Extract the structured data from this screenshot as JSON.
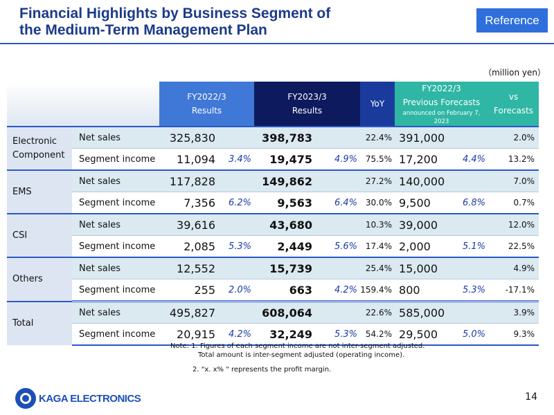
{
  "title": {
    "line1": "Financial Highlights by Business Segment of",
    "line2": "the Medium-Term Management Plan"
  },
  "badge": "Reference",
  "unit": "（million yen）",
  "headers": {
    "fy2022": {
      "line1": "FY2022/3",
      "line2": "Results"
    },
    "fy2023": {
      "line1": "FY2023/3",
      "line2": "Results"
    },
    "yoy": "YoY",
    "prev": {
      "line1": "FY2022/3",
      "line2": "Previous Forecasts",
      "line3": "announced on February 7, 2023"
    },
    "vs": {
      "line1": "vs",
      "line2": "Forecasts"
    }
  },
  "segments": [
    {
      "name": "Electronic Component",
      "rows": [
        {
          "item": "Net sales",
          "fy2022": "325,830",
          "fy2022_pct": "",
          "fy2023": "398,783",
          "fy2023_pct": "",
          "yoy": "22.4%",
          "prev": "391,000",
          "prev_pct": "",
          "vs": "2.0%"
        },
        {
          "item": "Segment income",
          "fy2022": "11,094",
          "fy2022_pct": "3.4%",
          "fy2023": "19,475",
          "fy2023_pct": "4.9%",
          "yoy": "75.5%",
          "prev": "17,200",
          "prev_pct": "4.4%",
          "vs": "13.2%"
        }
      ]
    },
    {
      "name": "EMS",
      "rows": [
        {
          "item": "Net sales",
          "fy2022": "117,828",
          "fy2022_pct": "",
          "fy2023": "149,862",
          "fy2023_pct": "",
          "yoy": "27.2%",
          "prev": "140,000",
          "prev_pct": "",
          "vs": "7.0%"
        },
        {
          "item": "Segment income",
          "fy2022": "7,356",
          "fy2022_pct": "6.2%",
          "fy2023": "9,563",
          "fy2023_pct": "6.4%",
          "yoy": "30.0%",
          "prev": "9,500",
          "prev_pct": "6.8%",
          "vs": "0.7%"
        }
      ]
    },
    {
      "name": "CSI",
      "rows": [
        {
          "item": "Net sales",
          "fy2022": "39,616",
          "fy2022_pct": "",
          "fy2023": "43,680",
          "fy2023_pct": "",
          "yoy": "10.3%",
          "prev": "39,000",
          "prev_pct": "",
          "vs": "12.0%"
        },
        {
          "item": "Segment income",
          "fy2022": "2,085",
          "fy2022_pct": "5.3%",
          "fy2023": "2,449",
          "fy2023_pct": "5.6%",
          "yoy": "17.4%",
          "prev": "2,000",
          "prev_pct": "5.1%",
          "vs": "22.5%"
        }
      ]
    },
    {
      "name": "Others",
      "rows": [
        {
          "item": "Net sales",
          "fy2022": "12,552",
          "fy2022_pct": "",
          "fy2023": "15,739",
          "fy2023_pct": "",
          "yoy": "25.4%",
          "prev": "15,000",
          "prev_pct": "",
          "vs": "4.9%"
        },
        {
          "item": "Segment income",
          "fy2022": "255",
          "fy2022_pct": "2.0%",
          "fy2023": "663",
          "fy2023_pct": "4.2%",
          "yoy": "159.4%",
          "prev": "800",
          "prev_pct": "5.3%",
          "vs": "-17.1%"
        }
      ]
    },
    {
      "name": "Total",
      "rows": [
        {
          "item": "Net sales",
          "fy2022": "495,827",
          "fy2022_pct": "",
          "fy2023": "608,064",
          "fy2023_pct": "",
          "yoy": "22.6%",
          "prev": "585,000",
          "prev_pct": "",
          "vs": "3.9%"
        },
        {
          "item": "Segment income",
          "fy2022": "20,915",
          "fy2022_pct": "4.2%",
          "fy2023": "32,249",
          "fy2023_pct": "5.3%",
          "yoy": "54.2%",
          "prev": "29,500",
          "prev_pct": "5.0%",
          "vs": "9.3%"
        }
      ]
    }
  ],
  "notes": {
    "line1": "Note: 1. Figures of each segment income are not inter-segment adjusted.",
    "line2": "Total amount is inter-segment adjusted (operating income).",
    "line3": "2. \"x. x% \" represents the profit margin."
  },
  "logo_text": "KAGA ELECTRONICS",
  "page_number": "14",
  "colors": {
    "title": "#1b3a8a",
    "badge": "#2e6fdc",
    "header_teal": "#2fb6a4",
    "header_navy": "#0e1a5e",
    "header_blue": "#3f78d6"
  }
}
